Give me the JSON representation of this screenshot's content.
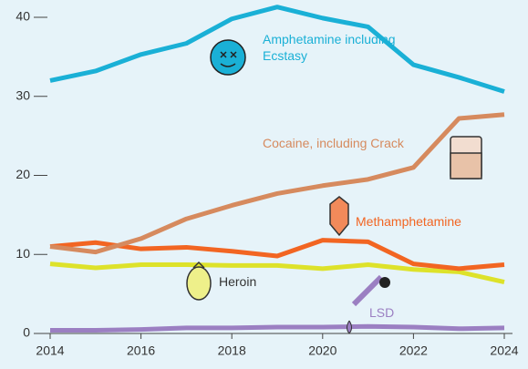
{
  "chart_data": {
    "type": "line",
    "x": [
      2014,
      2015,
      2016,
      2017,
      2018,
      2019,
      2020,
      2021,
      2022,
      2023,
      2024
    ],
    "xlim": [
      2014,
      2024
    ],
    "xticks": [
      2014,
      2016,
      2018,
      2020,
      2022,
      2024
    ],
    "ylim": [
      0,
      40
    ],
    "yticks": [
      0,
      10,
      20,
      30,
      40
    ],
    "series": [
      {
        "name": "Amphetamine including Ecstasy",
        "color": "#1ab0d6",
        "values": [
          32,
          33.2,
          35.3,
          36.7,
          39.8,
          41.3,
          39.9,
          38.8,
          34,
          32.4,
          30.6
        ]
      },
      {
        "name": "Cocaine, including Crack",
        "color": "#d68a5e",
        "values": [
          11,
          10.3,
          12,
          14.5,
          16.2,
          17.7,
          18.7,
          19.5,
          21,
          27.2,
          27.7
        ]
      },
      {
        "name": "Methamphetamine",
        "color": "#f26522",
        "values": [
          11,
          11.5,
          10.7,
          10.9,
          10.4,
          9.8,
          11.8,
          11.6,
          8.8,
          8.2,
          8.7
        ]
      },
      {
        "name": "Heroin",
        "color": "#dde22a",
        "values": [
          8.8,
          8.3,
          8.7,
          8.7,
          8.6,
          8.6,
          8.2,
          8.7,
          8.1,
          7.8,
          6.5
        ]
      },
      {
        "name": "LSD",
        "color": "#9b7fc2",
        "values": [
          0.4,
          0.4,
          0.5,
          0.7,
          0.7,
          0.8,
          0.8,
          0.9,
          0.8,
          0.6,
          0.7
        ]
      }
    ]
  }
}
